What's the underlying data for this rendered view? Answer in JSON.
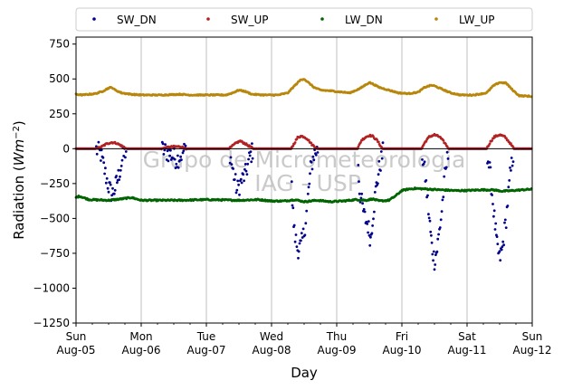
{
  "chart_data": {
    "type": "scatter",
    "xlabel": "Day",
    "ylabel_main": "Radiation (",
    "ylabel_unit_base": "Wm",
    "ylabel_unit_exp": "−2",
    "ylabel_tail": ")",
    "ylim": [
      -1250,
      800
    ],
    "yticks": [
      750,
      500,
      250,
      0,
      -250,
      -500,
      -750,
      -1000,
      -1250
    ],
    "ytick_labels": [
      "750",
      "500",
      "250",
      "0",
      "−250",
      "−500",
      "−750",
      "−1000",
      "−1250"
    ],
    "xlim": [
      0,
      7
    ],
    "x_unit": "days from Sun Aug-05 00:00",
    "xticks": [
      {
        "x": 0,
        "day": "Sun",
        "date": "Aug-05"
      },
      {
        "x": 1,
        "day": "Mon",
        "date": "Aug-06"
      },
      {
        "x": 2,
        "day": "Tue",
        "date": "Aug-07"
      },
      {
        "x": 3,
        "day": "Wed",
        "date": "Aug-08"
      },
      {
        "x": 4,
        "day": "Thu",
        "date": "Aug-09"
      },
      {
        "x": 5,
        "day": "Fri",
        "date": "Aug-10"
      },
      {
        "x": 6,
        "day": "Sat",
        "date": "Aug-11"
      },
      {
        "x": 7,
        "day": "Sun",
        "date": "Aug-12"
      }
    ],
    "grid": "vertical",
    "zero_line": true,
    "legend_position": "top",
    "watermark": [
      "Grupo de Micrometeorologia",
      "IAG - USP"
    ],
    "series": [
      {
        "name": "SW_DN",
        "color": "#00008b",
        "points": [
          [
            0,
            0
          ],
          [
            0.3,
            0
          ],
          [
            0.38,
            -40
          ],
          [
            0.45,
            -180
          ],
          [
            0.5,
            -270
          ],
          [
            0.55,
            -330
          ],
          [
            0.6,
            -280
          ],
          [
            0.65,
            -200
          ],
          [
            0.72,
            -60
          ],
          [
            0.78,
            0
          ],
          [
            1.3,
            0
          ],
          [
            1.45,
            -40
          ],
          [
            1.55,
            -80
          ],
          [
            1.65,
            -20
          ],
          [
            1.7,
            0
          ],
          [
            2,
            0
          ],
          [
            2.35,
            0
          ],
          [
            2.4,
            -140
          ],
          [
            2.47,
            -300
          ],
          [
            2.52,
            -250
          ],
          [
            2.6,
            -180
          ],
          [
            2.67,
            -60
          ],
          [
            2.72,
            0
          ],
          [
            3.3,
            0
          ],
          [
            3.32,
            -400
          ],
          [
            3.35,
            -600
          ],
          [
            3.4,
            -720
          ],
          [
            3.45,
            -700
          ],
          [
            3.5,
            -600
          ],
          [
            3.55,
            -400
          ],
          [
            3.6,
            -150
          ],
          [
            3.65,
            -40
          ],
          [
            3.72,
            0
          ],
          [
            4,
            0
          ],
          [
            4.32,
            0
          ],
          [
            4.35,
            -300
          ],
          [
            4.42,
            -480
          ],
          [
            4.48,
            -550
          ],
          [
            4.52,
            -650
          ],
          [
            4.55,
            -500
          ],
          [
            4.6,
            -300
          ],
          [
            4.65,
            -150
          ],
          [
            4.72,
            0
          ],
          [
            5.3,
            0
          ],
          [
            5.36,
            -200
          ],
          [
            5.42,
            -500
          ],
          [
            5.46,
            -700
          ],
          [
            5.5,
            -800
          ],
          [
            5.54,
            -720
          ],
          [
            5.6,
            -500
          ],
          [
            5.66,
            -200
          ],
          [
            5.72,
            0
          ],
          [
            6.3,
            0
          ],
          [
            6.36,
            -200
          ],
          [
            6.42,
            -500
          ],
          [
            6.46,
            -700
          ],
          [
            6.5,
            -790
          ],
          [
            6.54,
            -720
          ],
          [
            6.6,
            -500
          ],
          [
            6.66,
            -200
          ],
          [
            6.72,
            0
          ],
          [
            7,
            0
          ]
        ]
      },
      {
        "name": "SW_UP",
        "color": "#b22222",
        "points": [
          [
            0,
            0
          ],
          [
            0.3,
            0
          ],
          [
            0.38,
            10
          ],
          [
            0.45,
            30
          ],
          [
            0.5,
            40
          ],
          [
            0.55,
            45
          ],
          [
            0.62,
            40
          ],
          [
            0.7,
            20
          ],
          [
            0.78,
            0
          ],
          [
            1.3,
            0
          ],
          [
            1.42,
            10
          ],
          [
            1.5,
            15
          ],
          [
            1.6,
            15
          ],
          [
            1.7,
            0
          ],
          [
            2.35,
            0
          ],
          [
            2.4,
            20
          ],
          [
            2.47,
            45
          ],
          [
            2.52,
            55
          ],
          [
            2.58,
            40
          ],
          [
            2.67,
            15
          ],
          [
            2.72,
            0
          ],
          [
            3.3,
            0
          ],
          [
            3.35,
            40
          ],
          [
            3.4,
            80
          ],
          [
            3.45,
            90
          ],
          [
            3.5,
            85
          ],
          [
            3.55,
            70
          ],
          [
            3.62,
            30
          ],
          [
            3.7,
            0
          ],
          [
            4.32,
            0
          ],
          [
            4.38,
            60
          ],
          [
            4.45,
            85
          ],
          [
            4.5,
            95
          ],
          [
            4.55,
            90
          ],
          [
            4.62,
            60
          ],
          [
            4.7,
            0
          ],
          [
            5.3,
            0
          ],
          [
            5.36,
            50
          ],
          [
            5.42,
            85
          ],
          [
            5.5,
            100
          ],
          [
            5.58,
            85
          ],
          [
            5.66,
            40
          ],
          [
            5.72,
            0
          ],
          [
            6.3,
            0
          ],
          [
            6.36,
            50
          ],
          [
            6.42,
            85
          ],
          [
            6.5,
            100
          ],
          [
            6.58,
            85
          ],
          [
            6.66,
            40
          ],
          [
            6.72,
            0
          ],
          [
            7,
            0
          ]
        ]
      },
      {
        "name": "LW_DN",
        "color": "#006400",
        "points": [
          [
            0,
            -350
          ],
          [
            0.05,
            -340
          ],
          [
            0.2,
            -365
          ],
          [
            0.5,
            -370
          ],
          [
            0.7,
            -360
          ],
          [
            0.85,
            -350
          ],
          [
            1,
            -370
          ],
          [
            1.3,
            -370
          ],
          [
            1.6,
            -370
          ],
          [
            2,
            -365
          ],
          [
            2.5,
            -370
          ],
          [
            2.8,
            -365
          ],
          [
            3,
            -375
          ],
          [
            3.2,
            -375
          ],
          [
            3.35,
            -365
          ],
          [
            3.5,
            -380
          ],
          [
            3.7,
            -370
          ],
          [
            3.9,
            -380
          ],
          [
            4.1,
            -375
          ],
          [
            4.3,
            -365
          ],
          [
            4.45,
            -370
          ],
          [
            4.55,
            -360
          ],
          [
            4.65,
            -375
          ],
          [
            4.8,
            -370
          ],
          [
            4.9,
            -340
          ],
          [
            5,
            -300
          ],
          [
            5.1,
            -290
          ],
          [
            5.2,
            -285
          ],
          [
            5.4,
            -290
          ],
          [
            5.6,
            -295
          ],
          [
            5.8,
            -300
          ],
          [
            6,
            -300
          ],
          [
            6.2,
            -295
          ],
          [
            6.4,
            -295
          ],
          [
            6.55,
            -305
          ],
          [
            6.7,
            -300
          ],
          [
            6.85,
            -295
          ],
          [
            7,
            -290
          ]
        ]
      },
      {
        "name": "LW_UP",
        "color": "#b8860b",
        "points": [
          [
            0,
            390
          ],
          [
            0.1,
            385
          ],
          [
            0.2,
            390
          ],
          [
            0.3,
            395
          ],
          [
            0.4,
            410
          ],
          [
            0.5,
            435
          ],
          [
            0.55,
            440
          ],
          [
            0.6,
            420
          ],
          [
            0.7,
            400
          ],
          [
            0.85,
            390
          ],
          [
            1,
            385
          ],
          [
            1.3,
            385
          ],
          [
            1.6,
            390
          ],
          [
            1.75,
            385
          ],
          [
            2,
            385
          ],
          [
            2.3,
            385
          ],
          [
            2.4,
            400
          ],
          [
            2.5,
            420
          ],
          [
            2.6,
            410
          ],
          [
            2.7,
            390
          ],
          [
            2.9,
            385
          ],
          [
            3.1,
            385
          ],
          [
            3.25,
            400
          ],
          [
            3.35,
            450
          ],
          [
            3.45,
            495
          ],
          [
            3.5,
            500
          ],
          [
            3.55,
            480
          ],
          [
            3.65,
            440
          ],
          [
            3.75,
            420
          ],
          [
            3.9,
            415
          ],
          [
            4,
            410
          ],
          [
            4.2,
            400
          ],
          [
            4.35,
            430
          ],
          [
            4.45,
            460
          ],
          [
            4.5,
            475
          ],
          [
            4.55,
            465
          ],
          [
            4.65,
            440
          ],
          [
            4.8,
            420
          ],
          [
            4.95,
            400
          ],
          [
            5.1,
            395
          ],
          [
            5.25,
            405
          ],
          [
            5.35,
            440
          ],
          [
            5.45,
            455
          ],
          [
            5.5,
            450
          ],
          [
            5.6,
            430
          ],
          [
            5.75,
            400
          ],
          [
            5.9,
            385
          ],
          [
            6.1,
            385
          ],
          [
            6.3,
            400
          ],
          [
            6.4,
            450
          ],
          [
            6.5,
            475
          ],
          [
            6.6,
            470
          ],
          [
            6.7,
            420
          ],
          [
            6.8,
            380
          ],
          [
            7,
            375
          ]
        ]
      }
    ]
  }
}
